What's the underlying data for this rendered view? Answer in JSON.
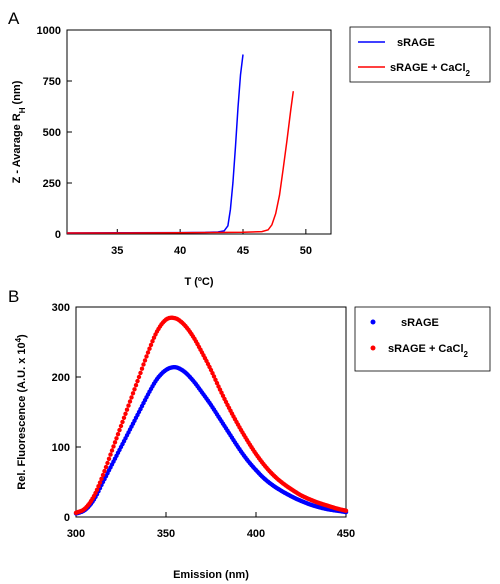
{
  "chart_data": [
    {
      "panel": "A",
      "type": "line",
      "xlabel": "T (ºC)",
      "ylabel_main": "Z - Avarage R",
      "ylabel_sub": "H",
      "ylabel_suffix": " (nm)",
      "xlim": [
        31,
        52
      ],
      "ylim": [
        0,
        1000
      ],
      "xticks": [
        35,
        40,
        45,
        50
      ],
      "yticks": [
        0,
        250,
        500,
        750,
        1000
      ],
      "grid": false,
      "legend_position": "right",
      "series": [
        {
          "name": "sRAGE",
          "color": "#0000ff",
          "x": [
            31,
            35,
            40,
            42,
            43,
            43.5,
            43.8,
            44.0,
            44.2,
            44.4,
            44.6,
            44.8,
            45.0
          ],
          "y": [
            5,
            6,
            7,
            8,
            10,
            15,
            40,
            120,
            250,
            430,
            620,
            780,
            880
          ]
        },
        {
          "name_main": "sRAGE + CaCl",
          "name_sub": "2",
          "color": "#ff0000",
          "x": [
            31,
            35,
            40,
            45,
            46.5,
            47.0,
            47.3,
            47.6,
            47.9,
            48.2,
            48.5,
            48.8,
            49.0
          ],
          "y": [
            5,
            5,
            6,
            9,
            12,
            20,
            45,
            100,
            190,
            320,
            460,
            610,
            700
          ]
        }
      ]
    },
    {
      "panel": "B",
      "type": "scatter",
      "xlabel": "Emission (nm)",
      "ylabel_main": "Rel. Fluorescence (A.U. x 10",
      "ylabel_sup": "4",
      "ylabel_suffix": ")",
      "xlim": [
        300,
        450
      ],
      "ylim": [
        0,
        300
      ],
      "xticks": [
        300,
        350,
        400,
        450
      ],
      "yticks": [
        0,
        100,
        200,
        300
      ],
      "grid": false,
      "legend_position": "right",
      "series": [
        {
          "name": "sRAGE",
          "color": "#0000ff",
          "x": [
            300,
            305,
            310,
            315,
            320,
            325,
            330,
            335,
            340,
            345,
            350,
            355,
            360,
            365,
            370,
            375,
            380,
            385,
            390,
            395,
            400,
            405,
            410,
            415,
            420,
            425,
            430,
            435,
            440,
            445,
            450
          ],
          "y": [
            5,
            10,
            25,
            50,
            75,
            100,
            125,
            150,
            175,
            197,
            210,
            214,
            208,
            195,
            178,
            160,
            140,
            120,
            100,
            82,
            67,
            54,
            44,
            36,
            29,
            23,
            18,
            14,
            11,
            9,
            7
          ]
        },
        {
          "name_main": "sRAGE + CaCl",
          "name_sub": "2",
          "color": "#ff0000",
          "x": [
            300,
            305,
            310,
            315,
            320,
            325,
            330,
            335,
            340,
            345,
            350,
            355,
            360,
            365,
            370,
            375,
            380,
            385,
            390,
            395,
            400,
            405,
            410,
            415,
            420,
            425,
            430,
            435,
            440,
            445,
            450
          ],
          "y": [
            6,
            12,
            30,
            60,
            95,
            130,
            165,
            200,
            235,
            265,
            282,
            284,
            275,
            258,
            235,
            210,
            182,
            156,
            132,
            110,
            90,
            73,
            59,
            48,
            39,
            31,
            25,
            20,
            16,
            12,
            9
          ]
        }
      ]
    }
  ]
}
